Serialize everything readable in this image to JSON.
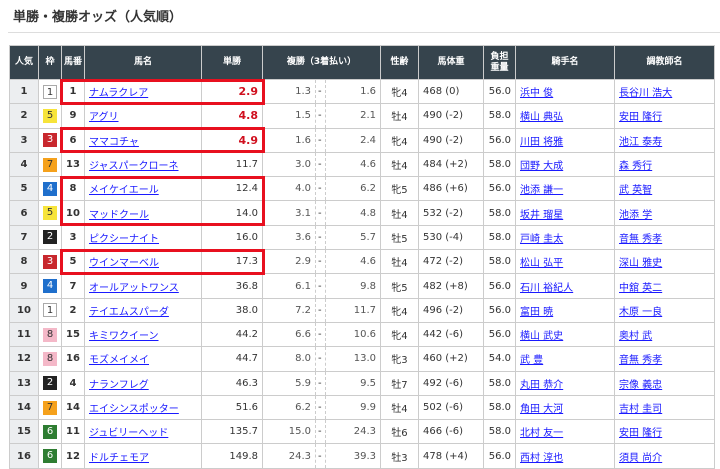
{
  "title": "単勝・複勝オッズ（人気順）",
  "headers": {
    "pop": "人気",
    "waku": "枠",
    "num": "馬番",
    "name": "馬名",
    "win": "単勝",
    "place": "複勝（3着払い）",
    "sexage": "性齢",
    "weight": "馬体重",
    "load1": "負担",
    "load2": "重量",
    "jockey": "騎手名",
    "trainer": "調教師名"
  },
  "waku_colors": {
    "1": [
      "#ffffff",
      "#333333"
    ],
    "2": [
      "#222222",
      "#ffffff"
    ],
    "3": [
      "#c8272d",
      "#ffffff"
    ],
    "4": [
      "#1f6fcc",
      "#ffffff"
    ],
    "5": [
      "#f7e43a",
      "#333333"
    ],
    "6": [
      "#2e7d32",
      "#ffffff"
    ],
    "7": [
      "#f5a11c",
      "#333333"
    ],
    "8": [
      "#f4b8c8",
      "#333333"
    ]
  },
  "highlight_color": "#e8101f",
  "rows": [
    {
      "pop": "1",
      "waku": "1",
      "num": "1",
      "name": "ナムラクレア",
      "win": "2.9",
      "plo": "1.3",
      "phi": "1.6",
      "sexage": "牝4",
      "weight": "468 (0)",
      "load": "56.0",
      "jockey": "浜中 俊",
      "trainer": "長谷川 浩大",
      "hot": true,
      "highlighted": true
    },
    {
      "pop": "2",
      "waku": "5",
      "num": "9",
      "name": "アグリ",
      "win": "4.8",
      "plo": "1.5",
      "phi": "2.1",
      "sexage": "牡4",
      "weight": "490 (-2)",
      "load": "58.0",
      "jockey": "横山 典弘",
      "trainer": "安田 隆行",
      "hot": true,
      "highlighted": false
    },
    {
      "pop": "3",
      "waku": "3",
      "num": "6",
      "name": "ママコチャ",
      "win": "4.9",
      "plo": "1.6",
      "phi": "2.4",
      "sexage": "牝4",
      "weight": "490 (-2)",
      "load": "56.0",
      "jockey": "川田 将雅",
      "trainer": "池江 泰寿",
      "hot": true,
      "highlighted": true
    },
    {
      "pop": "4",
      "waku": "7",
      "num": "13",
      "name": "ジャスパークローネ",
      "win": "11.7",
      "plo": "3.0",
      "phi": "4.6",
      "sexage": "牡4",
      "weight": "484 (+2)",
      "load": "58.0",
      "jockey": "団野 大成",
      "trainer": "森 秀行",
      "hot": false,
      "highlighted": false
    },
    {
      "pop": "5",
      "waku": "4",
      "num": "8",
      "name": "メイケイエール",
      "win": "12.4",
      "plo": "4.0",
      "phi": "6.2",
      "sexage": "牝5",
      "weight": "486 (+6)",
      "load": "56.0",
      "jockey": "池添 謙一",
      "trainer": "武 英智",
      "hot": false,
      "highlighted": true
    },
    {
      "pop": "6",
      "waku": "5",
      "num": "10",
      "name": "マッドクール",
      "win": "14.0",
      "plo": "3.1",
      "phi": "4.8",
      "sexage": "牡4",
      "weight": "532 (-2)",
      "load": "58.0",
      "jockey": "坂井 瑠星",
      "trainer": "池添 学",
      "hot": false,
      "highlighted": true
    },
    {
      "pop": "7",
      "waku": "2",
      "num": "3",
      "name": "ピクシーナイト",
      "win": "16.0",
      "plo": "3.6",
      "phi": "5.7",
      "sexage": "牡5",
      "weight": "530 (-4)",
      "load": "58.0",
      "jockey": "戸崎 圭太",
      "trainer": "音無 秀孝",
      "hot": false,
      "highlighted": false
    },
    {
      "pop": "8",
      "waku": "3",
      "num": "5",
      "name": "ウインマーベル",
      "win": "17.3",
      "plo": "2.9",
      "phi": "4.6",
      "sexage": "牡4",
      "weight": "472 (-2)",
      "load": "58.0",
      "jockey": "松山 弘平",
      "trainer": "深山 雅史",
      "hot": false,
      "highlighted": true
    },
    {
      "pop": "9",
      "waku": "4",
      "num": "7",
      "name": "オールアットワンス",
      "win": "36.8",
      "plo": "6.1",
      "phi": "9.8",
      "sexage": "牝5",
      "weight": "482 (+8)",
      "load": "56.0",
      "jockey": "石川 裕紀人",
      "trainer": "中舘 英二",
      "hot": false,
      "highlighted": false
    },
    {
      "pop": "10",
      "waku": "1",
      "num": "2",
      "name": "テイエムスパーダ",
      "win": "38.0",
      "plo": "7.2",
      "phi": "11.7",
      "sexage": "牝4",
      "weight": "496 (-2)",
      "load": "56.0",
      "jockey": "富田 暁",
      "trainer": "木原 一良",
      "hot": false,
      "highlighted": false
    },
    {
      "pop": "11",
      "waku": "8",
      "num": "15",
      "name": "キミワクイーン",
      "win": "44.2",
      "plo": "6.6",
      "phi": "10.6",
      "sexage": "牝4",
      "weight": "442 (-6)",
      "load": "56.0",
      "jockey": "横山 武史",
      "trainer": "奥村 武",
      "hot": false,
      "highlighted": false
    },
    {
      "pop": "12",
      "waku": "8",
      "num": "16",
      "name": "モズメイメイ",
      "win": "44.7",
      "plo": "8.0",
      "phi": "13.0",
      "sexage": "牝3",
      "weight": "460 (+2)",
      "load": "54.0",
      "jockey": "武 豊",
      "trainer": "音無 秀孝",
      "hot": false,
      "highlighted": false
    },
    {
      "pop": "13",
      "waku": "2",
      "num": "4",
      "name": "ナランフレグ",
      "win": "46.3",
      "plo": "5.9",
      "phi": "9.5",
      "sexage": "牡7",
      "weight": "492 (-6)",
      "load": "58.0",
      "jockey": "丸田 恭介",
      "trainer": "宗像 義忠",
      "hot": false,
      "highlighted": false
    },
    {
      "pop": "14",
      "waku": "7",
      "num": "14",
      "name": "エイシンスポッター",
      "win": "51.6",
      "plo": "6.2",
      "phi": "9.9",
      "sexage": "牡4",
      "weight": "502 (-6)",
      "load": "58.0",
      "jockey": "角田 大河",
      "trainer": "吉村 圭司",
      "hot": false,
      "highlighted": false
    },
    {
      "pop": "15",
      "waku": "6",
      "num": "11",
      "name": "ジュビリーヘッド",
      "win": "135.7",
      "plo": "15.0",
      "phi": "24.3",
      "sexage": "牡6",
      "weight": "466 (-6)",
      "load": "58.0",
      "jockey": "北村 友一",
      "trainer": "安田 隆行",
      "hot": false,
      "highlighted": false
    },
    {
      "pop": "16",
      "waku": "6",
      "num": "12",
      "name": "ドルチェモア",
      "win": "149.8",
      "plo": "24.3",
      "phi": "39.3",
      "sexage": "牡3",
      "weight": "478 (+4)",
      "load": "56.0",
      "jockey": "西村 淳也",
      "trainer": "須貝 尚介",
      "hot": false,
      "highlighted": false
    }
  ]
}
